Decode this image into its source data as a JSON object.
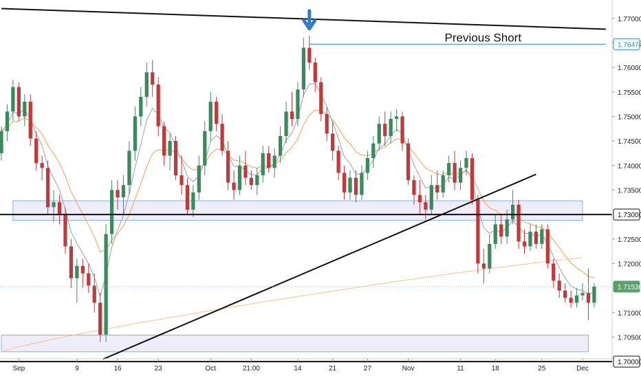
{
  "chart_data": {
    "type": "candlestick",
    "title": "",
    "xlabel": "",
    "ylabel": "",
    "ylim": [
      1.69665,
      1.77375
    ],
    "grid": false,
    "x_ticks": [
      {
        "label": "Sep",
        "i": 3
      },
      {
        "label": "9",
        "i": 13
      },
      {
        "label": "16",
        "i": 20
      },
      {
        "label": "23",
        "i": 27
      },
      {
        "label": "Oct",
        "i": 36
      },
      {
        "label": "21:00",
        "i": 43
      },
      {
        "label": "14",
        "i": 51
      },
      {
        "label": "21",
        "i": 57
      },
      {
        "label": "27",
        "i": 63
      },
      {
        "label": "Nov",
        "i": 70
      },
      {
        "label": "11",
        "i": 79
      },
      {
        "label": "18",
        "i": 85
      },
      {
        "label": "25",
        "i": 93
      },
      {
        "label": "Dec",
        "i": 100
      }
    ],
    "y_ticks": [
      "1.77000",
      "1.76500",
      "1.76000",
      "1.75500",
      "1.75000",
      "1.74500",
      "1.74000",
      "1.73500",
      "1.72500",
      "1.72000",
      "1.71000",
      "1.70500"
    ],
    "price_tags": [
      {
        "label": "1.76474",
        "value": 1.76474,
        "color": "#1e88e5",
        "style": "outline"
      },
      {
        "label": "1.73000",
        "value": 1.73,
        "color": "#111111",
        "style": "outline"
      },
      {
        "label": "1.71530",
        "value": 1.7153,
        "color": "#5aa06a",
        "style": "filled"
      },
      {
        "label": "1.70000",
        "value": 1.7,
        "color": "#111111",
        "style": "outline"
      }
    ],
    "annotations": [
      {
        "text": "Previous Short",
        "i": 79,
        "value": 1.76474
      }
    ],
    "colors": {
      "up": "#3a8a5c",
      "down": "#c0393b",
      "ema_fast": "#9aa0a8",
      "ema_slow": "#f0a050",
      "sma_long": "#f5c38c",
      "zone_fill": "#eceaf8",
      "zone_border": "#7fb3e0",
      "level_line": "#111111"
    },
    "horizontal_levels": [
      1.73,
      1.7
    ],
    "zones": [
      {
        "from_i": 2,
        "to_i": 100,
        "y1": 1.7288,
        "y2": 1.7328
      },
      {
        "from_i": 0,
        "to_i": 101,
        "y1": 1.702,
        "y2": 1.7054
      }
    ],
    "trendlines": [
      {
        "from_i": 0,
        "from": 1.772,
        "to_i": 104,
        "to": 1.7678
      },
      {
        "from_i": 17.5,
        "from": 1.7005,
        "to_i": 92,
        "to": 1.7382
      }
    ],
    "resistance_line": {
      "from_i": 53,
      "to_i": 104,
      "value": 1.76474
    },
    "arrow_marker": {
      "i": 53,
      "direction": "down",
      "color": "#2f7cc5"
    },
    "ohlc": [
      [
        1.7425,
        1.748,
        1.741,
        1.747
      ],
      [
        1.747,
        1.7525,
        1.745,
        1.751
      ],
      [
        1.751,
        1.7575,
        1.749,
        1.756
      ],
      [
        1.756,
        1.757,
        1.749,
        1.75
      ],
      [
        1.75,
        1.7545,
        1.748,
        1.753
      ],
      [
        1.753,
        1.7545,
        1.744,
        1.7455
      ],
      [
        1.7455,
        1.747,
        1.739,
        1.7405
      ],
      [
        1.7405,
        1.742,
        1.737,
        1.7395
      ],
      [
        1.7395,
        1.741,
        1.73,
        1.7315
      ],
      [
        1.7315,
        1.735,
        1.7285,
        1.7325
      ],
      [
        1.7325,
        1.734,
        1.728,
        1.73
      ],
      [
        1.73,
        1.7315,
        1.722,
        1.7235
      ],
      [
        1.7235,
        1.725,
        1.715,
        1.717
      ],
      [
        1.717,
        1.721,
        1.712,
        1.7195
      ],
      [
        1.7195,
        1.721,
        1.715,
        1.718
      ],
      [
        1.718,
        1.72,
        1.714,
        1.7155
      ],
      [
        1.7155,
        1.718,
        1.71,
        1.712
      ],
      [
        1.712,
        1.714,
        1.704,
        1.7055
      ],
      [
        1.7055,
        1.728,
        1.704,
        1.726
      ],
      [
        1.726,
        1.737,
        1.724,
        1.735
      ],
      [
        1.735,
        1.737,
        1.731,
        1.7335
      ],
      [
        1.7335,
        1.738,
        1.73,
        1.736
      ],
      [
        1.736,
        1.745,
        1.734,
        1.743
      ],
      [
        1.743,
        1.752,
        1.741,
        1.75
      ],
      [
        1.75,
        1.756,
        1.748,
        1.754
      ],
      [
        1.754,
        1.761,
        1.752,
        1.759
      ],
      [
        1.759,
        1.7615,
        1.754,
        1.7565
      ],
      [
        1.7565,
        1.758,
        1.746,
        1.748
      ],
      [
        1.748,
        1.749,
        1.74,
        1.742
      ],
      [
        1.742,
        1.7465,
        1.739,
        1.745
      ],
      [
        1.745,
        1.746,
        1.737,
        1.738
      ],
      [
        1.738,
        1.742,
        1.734,
        1.736
      ],
      [
        1.736,
        1.7375,
        1.73,
        1.731
      ],
      [
        1.731,
        1.736,
        1.7295,
        1.7345
      ],
      [
        1.7345,
        1.742,
        1.733,
        1.74
      ],
      [
        1.74,
        1.749,
        1.738,
        1.747
      ],
      [
        1.747,
        1.755,
        1.745,
        1.753
      ],
      [
        1.753,
        1.754,
        1.747,
        1.7485
      ],
      [
        1.7485,
        1.7505,
        1.742,
        1.743
      ],
      [
        1.743,
        1.745,
        1.735,
        1.7365
      ],
      [
        1.7365,
        1.739,
        1.733,
        1.735
      ],
      [
        1.735,
        1.742,
        1.734,
        1.74
      ],
      [
        1.74,
        1.743,
        1.736,
        1.7375
      ],
      [
        1.7375,
        1.739,
        1.735,
        1.736
      ],
      [
        1.736,
        1.7395,
        1.734,
        1.738
      ],
      [
        1.738,
        1.744,
        1.7365,
        1.7425
      ],
      [
        1.7425,
        1.744,
        1.7385,
        1.7395
      ],
      [
        1.7395,
        1.7435,
        1.7375,
        1.742
      ],
      [
        1.742,
        1.748,
        1.7405,
        1.746
      ],
      [
        1.746,
        1.753,
        1.7445,
        1.751
      ],
      [
        1.751,
        1.755,
        1.748,
        1.7495
      ],
      [
        1.7495,
        1.757,
        1.748,
        1.7555
      ],
      [
        1.7555,
        1.766,
        1.754,
        1.764
      ],
      [
        1.764,
        1.7665,
        1.7595,
        1.761
      ],
      [
        1.761,
        1.762,
        1.755,
        1.757
      ],
      [
        1.757,
        1.758,
        1.749,
        1.7505
      ],
      [
        1.7505,
        1.752,
        1.745,
        1.7465
      ],
      [
        1.7465,
        1.749,
        1.741,
        1.743
      ],
      [
        1.743,
        1.744,
        1.737,
        1.7385
      ],
      [
        1.7385,
        1.74,
        1.733,
        1.7345
      ],
      [
        1.7345,
        1.739,
        1.733,
        1.7375
      ],
      [
        1.7375,
        1.739,
        1.7325,
        1.734
      ],
      [
        1.734,
        1.74,
        1.733,
        1.7385
      ],
      [
        1.7385,
        1.743,
        1.737,
        1.7415
      ],
      [
        1.7415,
        1.746,
        1.7395,
        1.7445
      ],
      [
        1.7445,
        1.75,
        1.743,
        1.7485
      ],
      [
        1.7485,
        1.751,
        1.744,
        1.746
      ],
      [
        1.746,
        1.751,
        1.7445,
        1.7495
      ],
      [
        1.7495,
        1.7515,
        1.747,
        1.75
      ],
      [
        1.75,
        1.751,
        1.743,
        1.7445
      ],
      [
        1.7445,
        1.7455,
        1.736,
        1.737
      ],
      [
        1.737,
        1.738,
        1.732,
        1.734
      ],
      [
        1.734,
        1.737,
        1.73,
        1.7325
      ],
      [
        1.7325,
        1.734,
        1.729,
        1.731
      ],
      [
        1.731,
        1.738,
        1.73,
        1.736
      ],
      [
        1.736,
        1.739,
        1.733,
        1.7345
      ],
      [
        1.7345,
        1.739,
        1.7335,
        1.738
      ],
      [
        1.738,
        1.742,
        1.7365,
        1.7405
      ],
      [
        1.7405,
        1.743,
        1.735,
        1.7365
      ],
      [
        1.7365,
        1.741,
        1.735,
        1.7395
      ],
      [
        1.7395,
        1.743,
        1.738,
        1.7415
      ],
      [
        1.7415,
        1.7425,
        1.732,
        1.733
      ],
      [
        1.733,
        1.734,
        1.718,
        1.72
      ],
      [
        1.72,
        1.723,
        1.716,
        1.719
      ],
      [
        1.719,
        1.726,
        1.718,
        1.724
      ],
      [
        1.724,
        1.73,
        1.723,
        1.728
      ],
      [
        1.728,
        1.73,
        1.724,
        1.7255
      ],
      [
        1.7255,
        1.731,
        1.724,
        1.729
      ],
      [
        1.729,
        1.735,
        1.728,
        1.732
      ],
      [
        1.732,
        1.733,
        1.723,
        1.7245
      ],
      [
        1.7245,
        1.727,
        1.722,
        1.7235
      ],
      [
        1.7235,
        1.728,
        1.7225,
        1.7265
      ],
      [
        1.7265,
        1.728,
        1.723,
        1.724
      ],
      [
        1.724,
        1.728,
        1.723,
        1.727
      ],
      [
        1.727,
        1.728,
        1.719,
        1.72
      ],
      [
        1.72,
        1.721,
        1.715,
        1.7165
      ],
      [
        1.7165,
        1.718,
        1.713,
        1.7145
      ],
      [
        1.7145,
        1.716,
        1.712,
        1.713
      ],
      [
        1.713,
        1.7145,
        1.711,
        1.712
      ],
      [
        1.712,
        1.715,
        1.711,
        1.7135
      ],
      [
        1.7135,
        1.716,
        1.7125,
        1.714
      ],
      [
        1.714,
        1.719,
        1.7085,
        1.712
      ],
      [
        1.712,
        1.716,
        1.711,
        1.7153
      ]
    ]
  }
}
